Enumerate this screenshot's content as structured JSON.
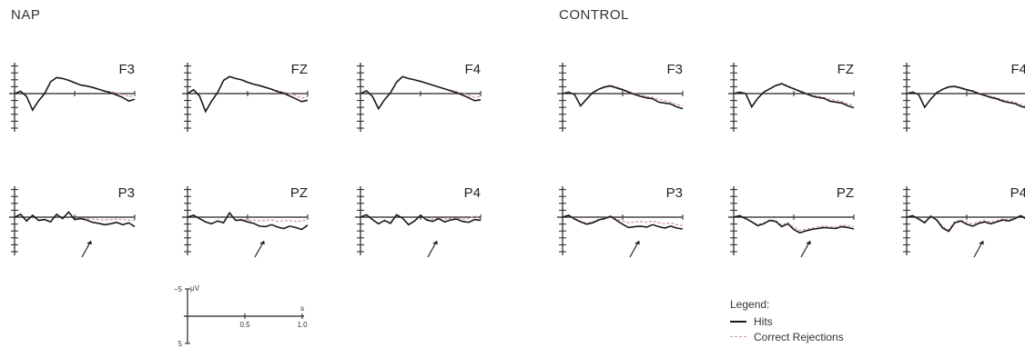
{
  "groups": {
    "nap": {
      "title": "NAP"
    },
    "control": {
      "title": "CONTROL"
    }
  },
  "legend": {
    "title": "Legend:",
    "items": [
      {
        "label": "Hits",
        "color": "#1a1a1a",
        "style": "solid"
      },
      {
        "label": "Correct Rejections",
        "color": "#d49a9a",
        "style": "dashed"
      }
    ]
  },
  "colors": {
    "hits": "#1a1a1a",
    "correct_rejections": "#d49a9a",
    "axis": "#222222"
  },
  "scale_bar": {
    "y_unit": "μV",
    "y_top_label": "−5",
    "y_bottom_label": "5",
    "x_unit": "s",
    "x_ticks": [
      "0.5",
      "1.0"
    ],
    "negative_up": true
  },
  "chart_data": {
    "type": "line",
    "x_unit": "s",
    "y_unit": "μV",
    "xlim": [
      0,
      1.0
    ],
    "ylim": [
      5,
      -5
    ],
    "x": [
      0.0,
      0.05,
      0.1,
      0.15,
      0.2,
      0.25,
      0.3,
      0.35,
      0.4,
      0.45,
      0.5,
      0.55,
      0.6,
      0.65,
      0.7,
      0.75,
      0.8,
      0.85,
      0.9,
      0.95,
      1.0
    ],
    "panels": [
      {
        "group": "NAP",
        "electrode": "F3",
        "hits": [
          0.0,
          -0.5,
          0.6,
          3.5,
          1.5,
          0.0,
          -2.5,
          -3.4,
          -3.2,
          -2.8,
          -2.3,
          -1.8,
          -1.6,
          -1.3,
          -0.9,
          -0.5,
          -0.2,
          0.3,
          0.8,
          1.6,
          1.2
        ],
        "correct_rejections": [
          0.0,
          -0.5,
          0.6,
          3.4,
          1.5,
          0.0,
          -2.5,
          -3.4,
          -3.2,
          -2.8,
          -2.2,
          -1.8,
          -1.6,
          -1.3,
          -0.9,
          -0.6,
          -0.4,
          -0.2,
          0.2,
          0.6,
          0.4
        ]
      },
      {
        "group": "NAP",
        "electrode": "FZ",
        "hits": [
          0.0,
          -0.8,
          0.5,
          3.8,
          1.6,
          -0.2,
          -2.8,
          -3.6,
          -3.2,
          -2.9,
          -2.4,
          -2.0,
          -1.7,
          -1.3,
          -0.9,
          -0.4,
          -0.1,
          0.5,
          1.1,
          1.7,
          1.4
        ],
        "correct_rejections": [
          0.0,
          -0.8,
          0.5,
          3.7,
          1.6,
          -0.2,
          -2.8,
          -3.6,
          -3.2,
          -2.9,
          -2.3,
          -1.9,
          -1.7,
          -1.3,
          -0.9,
          -0.6,
          -0.3,
          0.0,
          0.4,
          0.9,
          0.7
        ]
      },
      {
        "group": "NAP",
        "electrode": "F4",
        "hits": [
          0.0,
          -0.6,
          0.6,
          3.2,
          1.3,
          -0.2,
          -2.4,
          -3.6,
          -3.2,
          -2.9,
          -2.6,
          -2.2,
          -1.8,
          -1.4,
          -1.0,
          -0.6,
          -0.2,
          0.3,
          0.9,
          1.5,
          1.3
        ],
        "correct_rejections": [
          0.0,
          -0.6,
          0.6,
          3.1,
          1.3,
          -0.2,
          -2.4,
          -3.6,
          -3.2,
          -2.9,
          -2.5,
          -2.2,
          -1.8,
          -1.4,
          -1.0,
          -0.7,
          -0.4,
          -0.1,
          0.4,
          0.8,
          0.6
        ]
      },
      {
        "group": "NAP",
        "electrode": "P3",
        "hits": [
          0.0,
          -0.6,
          0.8,
          -0.4,
          0.7,
          0.5,
          1.0,
          -0.6,
          0.3,
          -1.1,
          0.5,
          0.3,
          0.6,
          1.1,
          1.3,
          1.6,
          1.4,
          1.1,
          1.6,
          1.2,
          2.0
        ],
        "correct_rejections": [
          0.0,
          -0.6,
          0.8,
          -0.4,
          0.7,
          0.5,
          0.9,
          -0.6,
          0.3,
          -1.0,
          0.4,
          0.2,
          0.3,
          0.4,
          0.5,
          0.6,
          0.5,
          0.4,
          0.5,
          0.6,
          0.7
        ]
      },
      {
        "group": "NAP",
        "electrode": "PZ",
        "hits": [
          0.0,
          -0.4,
          0.3,
          1.0,
          1.4,
          0.8,
          1.2,
          -0.9,
          0.7,
          0.6,
          1.0,
          1.3,
          1.9,
          2.0,
          1.6,
          2.1,
          2.4,
          1.9,
          2.2,
          2.6,
          1.7
        ],
        "correct_rejections": [
          0.0,
          -0.4,
          0.3,
          1.0,
          1.4,
          0.8,
          1.1,
          -0.9,
          0.6,
          0.5,
          0.7,
          0.6,
          0.8,
          0.7,
          0.6,
          0.9,
          0.8,
          0.7,
          0.9,
          0.8,
          0.5
        ]
      },
      {
        "group": "NAP",
        "electrode": "P4",
        "hits": [
          0.0,
          -0.5,
          0.5,
          1.4,
          0.7,
          1.3,
          -0.5,
          0.2,
          1.6,
          0.8,
          -0.4,
          0.6,
          0.9,
          0.3,
          1.0,
          0.6,
          0.4,
          0.9,
          1.1,
          0.5,
          0.7
        ],
        "correct_rejections": [
          0.0,
          -0.5,
          0.5,
          1.4,
          0.7,
          1.2,
          -0.5,
          0.2,
          1.5,
          0.8,
          -0.3,
          0.4,
          0.5,
          0.1,
          0.4,
          0.3,
          0.2,
          0.4,
          0.3,
          -0.3,
          0.3
        ]
      },
      {
        "group": "CONTROL",
        "electrode": "F3",
        "hits": [
          0.0,
          -0.3,
          0.2,
          2.6,
          1.2,
          -0.2,
          -0.9,
          -1.4,
          -1.6,
          -1.2,
          -0.8,
          -0.3,
          0.2,
          0.6,
          0.9,
          1.1,
          1.8,
          2.0,
          2.2,
          2.8,
          3.2
        ],
        "correct_rejections": [
          0.0,
          -0.3,
          0.2,
          2.5,
          1.1,
          -0.2,
          -1.0,
          -1.5,
          -1.8,
          -1.4,
          -1.0,
          -0.4,
          0.0,
          0.3,
          0.6,
          0.8,
          1.2,
          1.5,
          1.8,
          2.3,
          2.6
        ]
      },
      {
        "group": "CONTROL",
        "electrode": "FZ",
        "hits": [
          0.0,
          -0.3,
          0.0,
          2.8,
          1.0,
          -0.3,
          -1.0,
          -1.7,
          -2.1,
          -1.5,
          -1.0,
          -0.5,
          0.0,
          0.5,
          0.8,
          1.0,
          1.6,
          1.8,
          2.0,
          2.6,
          3.0
        ],
        "correct_rejections": [
          0.0,
          -0.3,
          0.0,
          2.7,
          1.0,
          -0.3,
          -1.1,
          -1.8,
          -2.2,
          -1.7,
          -1.1,
          -0.6,
          -0.1,
          0.3,
          0.6,
          0.8,
          1.2,
          1.4,
          1.7,
          2.2,
          2.5
        ]
      },
      {
        "group": "CONTROL",
        "electrode": "F4",
        "hits": [
          0.0,
          -0.3,
          0.2,
          2.9,
          1.2,
          -0.2,
          -0.9,
          -1.4,
          -1.5,
          -1.2,
          -0.8,
          -0.5,
          0.0,
          0.4,
          0.8,
          1.1,
          1.6,
          1.9,
          2.1,
          2.7,
          3.0
        ],
        "correct_rejections": [
          0.0,
          -0.3,
          0.2,
          2.8,
          1.1,
          -0.2,
          -1.0,
          -1.5,
          -1.6,
          -1.3,
          -0.9,
          -0.6,
          -0.1,
          0.2,
          0.6,
          0.9,
          1.3,
          1.6,
          1.8,
          2.3,
          2.6
        ]
      },
      {
        "group": "CONTROL",
        "electrode": "P3",
        "hits": [
          0.0,
          -0.4,
          0.4,
          1.0,
          1.5,
          1.2,
          0.6,
          0.3,
          -0.2,
          0.7,
          1.5,
          2.2,
          2.0,
          1.9,
          2.1,
          1.6,
          2.0,
          2.3,
          1.9,
          2.3,
          2.5
        ],
        "correct_rejections": [
          0.0,
          -0.4,
          0.3,
          0.8,
          1.3,
          1.0,
          0.5,
          0.2,
          -0.2,
          0.4,
          0.8,
          1.2,
          1.0,
          0.9,
          1.1,
          0.8,
          1.2,
          1.4,
          1.2,
          1.6,
          1.8
        ]
      },
      {
        "group": "CONTROL",
        "electrode": "PZ",
        "hits": [
          0.0,
          -0.3,
          0.3,
          1.0,
          1.8,
          1.4,
          0.7,
          0.9,
          2.0,
          1.4,
          2.6,
          3.3,
          2.9,
          2.6,
          2.4,
          2.2,
          2.3,
          2.4,
          2.0,
          2.2,
          2.5
        ],
        "correct_rejections": [
          0.0,
          -0.3,
          0.3,
          0.9,
          1.6,
          1.2,
          0.6,
          0.7,
          1.7,
          1.1,
          2.1,
          2.8,
          2.6,
          2.3,
          2.1,
          1.9,
          2.0,
          2.1,
          1.7,
          1.8,
          2.0
        ]
      },
      {
        "group": "CONTROL",
        "electrode": "P4",
        "hits": [
          0.0,
          -0.3,
          0.4,
          1.2,
          -0.2,
          0.6,
          2.3,
          3.0,
          1.2,
          0.8,
          1.5,
          1.9,
          1.3,
          1.0,
          1.4,
          1.0,
          0.6,
          0.8,
          0.3,
          -0.3,
          0.5
        ],
        "correct_rejections": [
          0.0,
          -0.3,
          0.3,
          1.0,
          -0.3,
          0.5,
          2.0,
          2.7,
          1.0,
          0.6,
          1.1,
          1.4,
          1.0,
          0.7,
          1.0,
          0.7,
          0.4,
          0.5,
          0.2,
          -0.4,
          0.2
        ]
      }
    ]
  }
}
